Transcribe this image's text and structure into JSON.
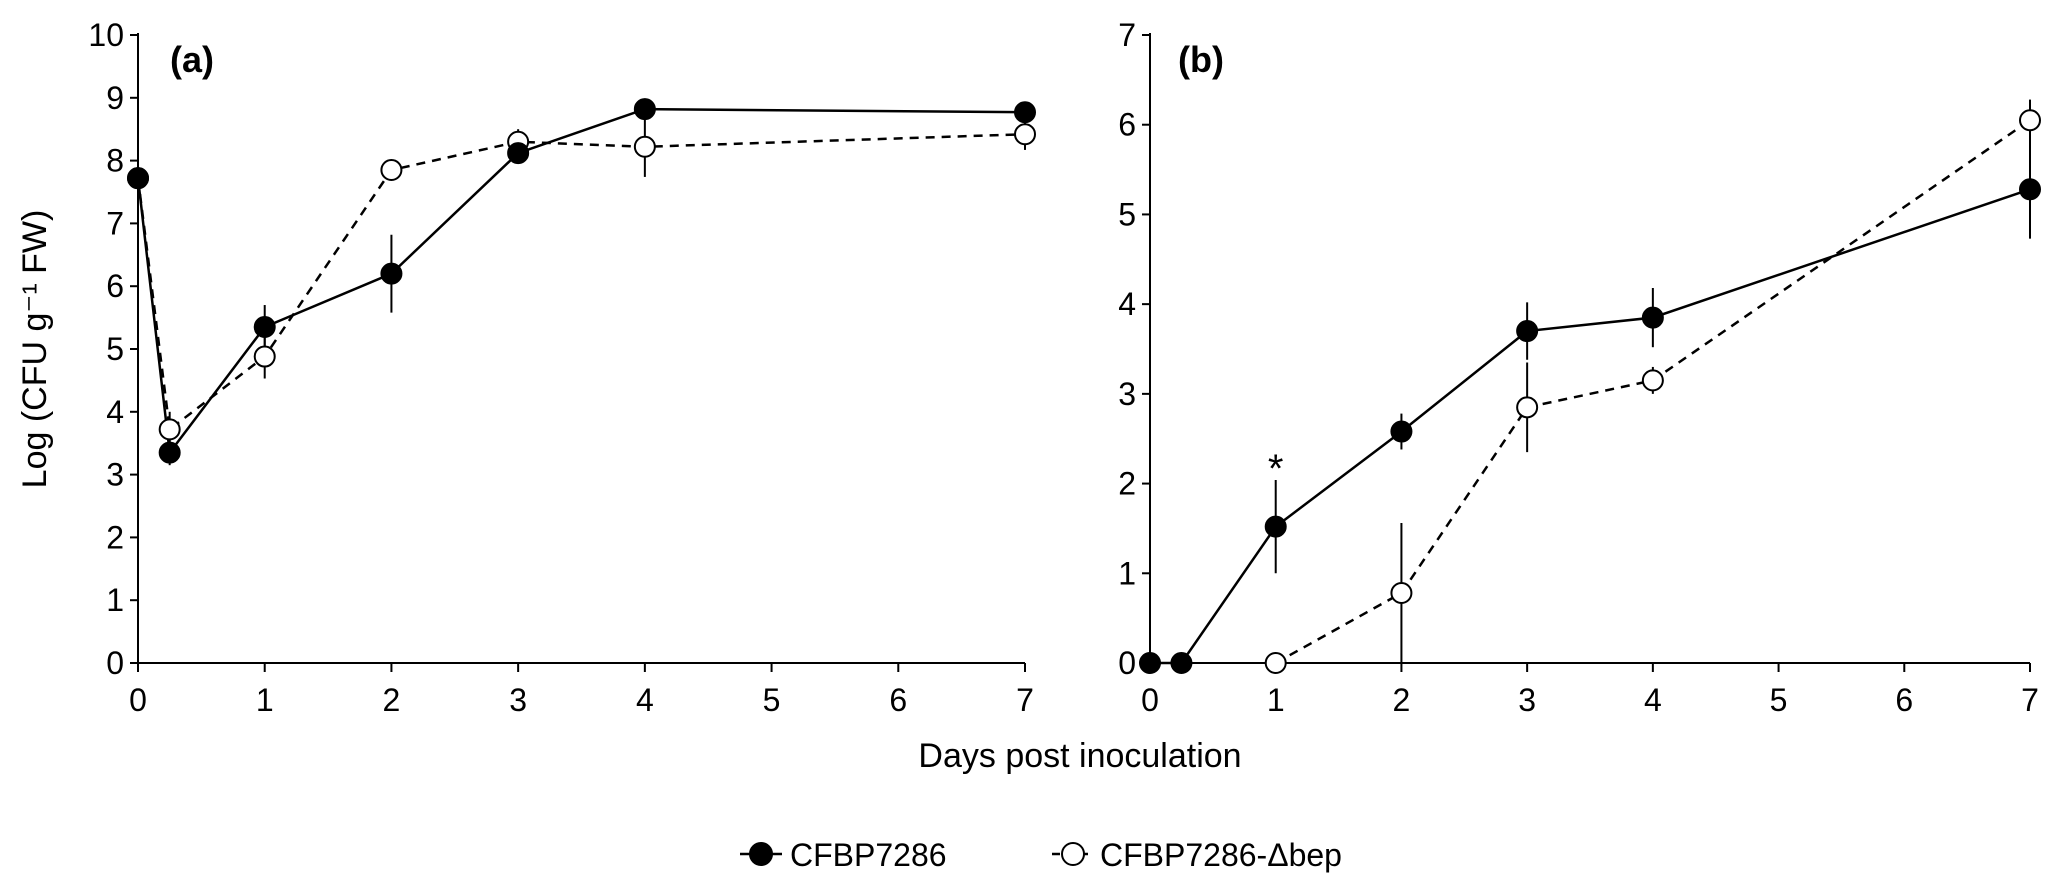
{
  "shared": {
    "xlabel": "Days post inoculation",
    "legend": [
      {
        "name": "CFBP7286",
        "marker": "filled-circle",
        "line": "solid"
      },
      {
        "name": "CFBP7286-Δbep",
        "marker": "open-circle",
        "line": "dashed"
      }
    ]
  },
  "chart_data": [
    {
      "type": "line",
      "panel_label": "(a)",
      "ylabel": "Log (CFU g⁻¹ FW)",
      "ylim": [
        0,
        10
      ],
      "yticks": [
        0,
        1,
        2,
        3,
        4,
        5,
        6,
        7,
        8,
        9,
        10
      ],
      "xlim": [
        0,
        7
      ],
      "xticks": [
        0,
        1,
        2,
        3,
        4,
        5,
        6,
        7
      ],
      "series": [
        {
          "name": "CFBP7286",
          "style": "solid",
          "marker": "filled",
          "x": [
            0,
            0.25,
            1,
            2,
            3,
            4,
            7
          ],
          "y": [
            7.72,
            3.35,
            5.35,
            6.2,
            8.12,
            8.82,
            8.77
          ],
          "err": [
            0.05,
            0.2,
            0.35,
            0.62,
            0.1,
            0.17,
            0.05
          ]
        },
        {
          "name": "CFBP7286-Δbep",
          "style": "dashed",
          "marker": "open",
          "x": [
            0,
            0.25,
            1,
            2,
            3,
            4,
            7
          ],
          "y": [
            7.72,
            3.72,
            4.88,
            7.85,
            8.3,
            8.22,
            8.42
          ],
          "err": [
            0.05,
            0.28,
            0.35,
            0.05,
            0.2,
            0.48,
            0.25
          ]
        }
      ],
      "annotations": []
    },
    {
      "type": "line",
      "panel_label": "(b)",
      "ylabel": "",
      "ylim": [
        0,
        7
      ],
      "yticks": [
        0,
        1,
        2,
        3,
        4,
        5,
        6,
        7
      ],
      "xlim": [
        0,
        7
      ],
      "xticks": [
        0,
        1,
        2,
        3,
        4,
        5,
        6,
        7
      ],
      "series": [
        {
          "name": "CFBP7286",
          "style": "solid",
          "marker": "filled",
          "x": [
            0,
            0.25,
            1,
            2,
            3,
            4,
            7
          ],
          "y": [
            0,
            0,
            1.52,
            2.58,
            3.7,
            3.85,
            5.28
          ],
          "err": [
            0,
            0,
            0.52,
            0.2,
            0.32,
            0.33,
            0.55
          ]
        },
        {
          "name": "CFBP7286-Δbep",
          "style": "dashed",
          "marker": "open",
          "x": [
            1,
            2,
            3,
            4,
            7
          ],
          "y": [
            0,
            0.78,
            2.85,
            3.15,
            6.05
          ],
          "err": [
            0,
            0.78,
            0.5,
            0.15,
            0.23
          ]
        }
      ],
      "annotations": [
        {
          "text": "*",
          "x": 1,
          "y": 2.22
        }
      ]
    }
  ]
}
